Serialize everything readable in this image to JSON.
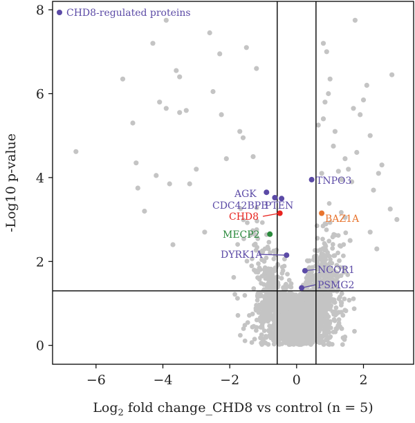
{
  "chart_data": {
    "type": "scatter",
    "title": "",
    "xlabel_prefix": "Log",
    "xlabel_sub": "2",
    "xlabel_rest": " fold change_CHD8 vs control (n = 5)",
    "ylabel": "-Log10 p-value",
    "xlim": [
      -7.3,
      3.5
    ],
    "ylim": [
      -0.45,
      8.2
    ],
    "x_ticks": [
      -6,
      -4,
      -2,
      0,
      2
    ],
    "x_tick_labels": [
      "−6",
      "−4",
      "−2",
      "0",
      "2"
    ],
    "y_ticks": [
      0,
      2,
      4,
      6,
      8
    ],
    "y_tick_labels": [
      "0",
      "2",
      "4",
      "6",
      "8"
    ],
    "thresholds": {
      "vertical": [
        -0.58,
        0.58
      ],
      "horizontal": [
        1.3
      ]
    },
    "legend": {
      "label": "CHD8-regulated proteins",
      "color": "#5b4aa6",
      "position": "top-left"
    },
    "colors": {
      "background_points": "#c4c4c4",
      "regulated": "#5b4aa6",
      "chd8": "#e8231e",
      "baz1a": "#e8742e",
      "mecp2": "#2a8a3c",
      "lines": "#000000"
    },
    "outlier_points": [
      [
        -6.6,
        4.62
      ],
      [
        -5.2,
        6.35
      ],
      [
        -4.9,
        5.3
      ],
      [
        -4.75,
        3.75
      ],
      [
        -4.8,
        4.35
      ],
      [
        -4.55,
        3.2
      ],
      [
        -4.3,
        7.2
      ],
      [
        -4.1,
        5.8
      ],
      [
        -3.9,
        5.65
      ],
      [
        -3.8,
        3.85
      ],
      [
        -3.7,
        2.4
      ],
      [
        -3.6,
        6.55
      ],
      [
        -3.5,
        5.55
      ],
      [
        -3.5,
        6.4
      ],
      [
        -3.3,
        5.6
      ],
      [
        -3.2,
        3.85
      ],
      [
        -3.0,
        4.2
      ],
      [
        -2.75,
        2.7
      ],
      [
        -2.6,
        7.45
      ],
      [
        -2.5,
        6.05
      ],
      [
        -2.3,
        6.95
      ],
      [
        -2.25,
        5.5
      ],
      [
        -2.1,
        4.45
      ],
      [
        -1.7,
        5.1
      ],
      [
        -1.6,
        4.95
      ],
      [
        -1.5,
        7.1
      ],
      [
        -1.3,
        4.5
      ],
      [
        -1.2,
        6.6
      ],
      [
        -3.9,
        7.75
      ],
      [
        -4.2,
        4.05
      ],
      [
        2.85,
        6.45
      ],
      [
        3.0,
        3.0
      ],
      [
        2.8,
        3.25
      ],
      [
        2.55,
        4.3
      ],
      [
        2.45,
        4.1
      ],
      [
        2.3,
        3.7
      ],
      [
        2.2,
        5.0
      ],
      [
        2.1,
        6.2
      ],
      [
        2.0,
        5.85
      ],
      [
        1.9,
        5.5
      ],
      [
        1.8,
        4.6
      ],
      [
        1.75,
        7.75
      ],
      [
        1.7,
        5.65
      ],
      [
        1.65,
        3.9
      ],
      [
        1.55,
        4.2
      ],
      [
        1.45,
        4.45
      ],
      [
        1.35,
        3.95
      ],
      [
        1.25,
        4.15
      ],
      [
        0.9,
        7.0
      ],
      [
        1.0,
        6.35
      ],
      [
        0.95,
        6.0
      ],
      [
        0.85,
        5.8
      ],
      [
        0.8,
        5.4
      ],
      [
        1.15,
        5.1
      ],
      [
        1.1,
        4.75
      ],
      [
        0.8,
        7.2
      ],
      [
        1.45,
        3.05
      ],
      [
        1.6,
        2.5
      ],
      [
        2.2,
        2.7
      ],
      [
        2.4,
        2.3
      ],
      [
        0.75,
        4.1
      ],
      [
        0.65,
        5.25
      ]
    ],
    "highlighted": [
      {
        "label": "AGK",
        "x": -0.9,
        "y": 3.65,
        "color": "#5b4aa6"
      },
      {
        "label": "CDC42BPB",
        "x": -0.65,
        "y": 3.52,
        "color": "#5b4aa6"
      },
      {
        "label": "PTEN",
        "x": -0.45,
        "y": 3.5,
        "color": "#5b4aa6"
      },
      {
        "label": "CHD8",
        "x": -0.5,
        "y": 3.15,
        "color": "#e8231e"
      },
      {
        "label": "MECP2",
        "x": -0.8,
        "y": 2.65,
        "color": "#2a8a3c"
      },
      {
        "label": "DYRK1A",
        "x": -0.3,
        "y": 2.15,
        "color": "#5b4aa6"
      },
      {
        "label": "TNPO3",
        "x": 0.45,
        "y": 3.95,
        "color": "#5b4aa6"
      },
      {
        "label": "BAZ1A",
        "x": 0.75,
        "y": 3.15,
        "color": "#e8742e"
      },
      {
        "label": "NCOR1",
        "x": 0.25,
        "y": 1.78,
        "color": "#5b4aa6"
      },
      {
        "label": "PSMG2",
        "x": 0.15,
        "y": 1.37,
        "color": "#5b4aa6"
      }
    ]
  }
}
